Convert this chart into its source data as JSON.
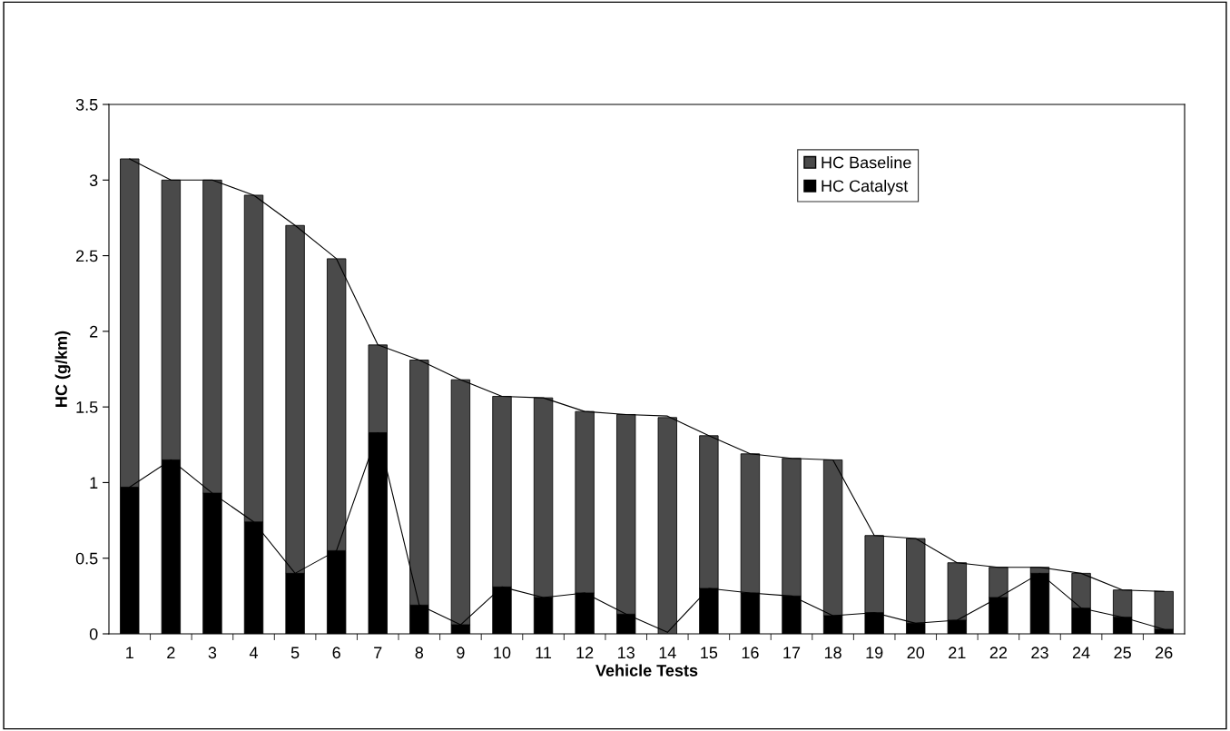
{
  "chart_data": {
    "type": "bar",
    "stacked": true,
    "xlabel": "Vehicle Tests",
    "ylabel": "HC (g/km)",
    "categories": [
      "1",
      "2",
      "3",
      "4",
      "5",
      "6",
      "7",
      "8",
      "9",
      "10",
      "11",
      "12",
      "13",
      "14",
      "15",
      "16",
      "17",
      "18",
      "19",
      "20",
      "21",
      "22",
      "23",
      "24",
      "25",
      "26"
    ],
    "series": [
      {
        "name": "HC Catalyst",
        "color": "#000000",
        "values": [
          0.97,
          1.15,
          0.93,
          0.74,
          0.4,
          0.55,
          1.33,
          0.19,
          0.06,
          0.31,
          0.24,
          0.27,
          0.13,
          null,
          0.3,
          0.27,
          0.25,
          0.12,
          0.14,
          0.07,
          0.09,
          0.24,
          0.4,
          0.17,
          0.11,
          0.03
        ]
      },
      {
        "name": "HC Baseline",
        "color": "#4a4a4a",
        "values": [
          2.17,
          1.85,
          2.07,
          2.16,
          2.3,
          1.93,
          0.58,
          1.62,
          1.62,
          1.26,
          1.32,
          1.2,
          1.32,
          1.43,
          1.01,
          0.92,
          0.91,
          1.03,
          0.51,
          0.56,
          0.38,
          0.2,
          0.04,
          0.23,
          0.18,
          0.25
        ]
      },
      {
        "type": "line",
        "color": "#000000",
        "values": [
          0.97,
          1.15,
          0.93,
          0.74,
          0.4,
          0.55,
          1.33,
          0.19,
          0.06,
          0.31,
          0.24,
          0.27,
          0.13,
          0.01,
          0.3,
          0.27,
          0.25,
          0.12,
          0.14,
          0.07,
          0.09,
          0.24,
          0.4,
          0.17,
          0.11,
          0.03
        ]
      },
      {
        "type": "line",
        "color": "#000000",
        "values": [
          3.14,
          3.0,
          3.0,
          2.9,
          2.7,
          2.48,
          1.91,
          1.81,
          1.68,
          1.57,
          1.56,
          1.47,
          1.45,
          1.44,
          1.31,
          1.19,
          1.16,
          1.15,
          0.65,
          0.63,
          0.47,
          0.44,
          0.44,
          0.4,
          0.29,
          0.28
        ]
      }
    ],
    "ylim": [
      0,
      3.5
    ],
    "yticks": [
      0,
      0.5,
      1,
      1.5,
      2,
      2.5,
      3,
      3.5
    ],
    "grid": false,
    "legend": "top right",
    "marker": "none"
  }
}
